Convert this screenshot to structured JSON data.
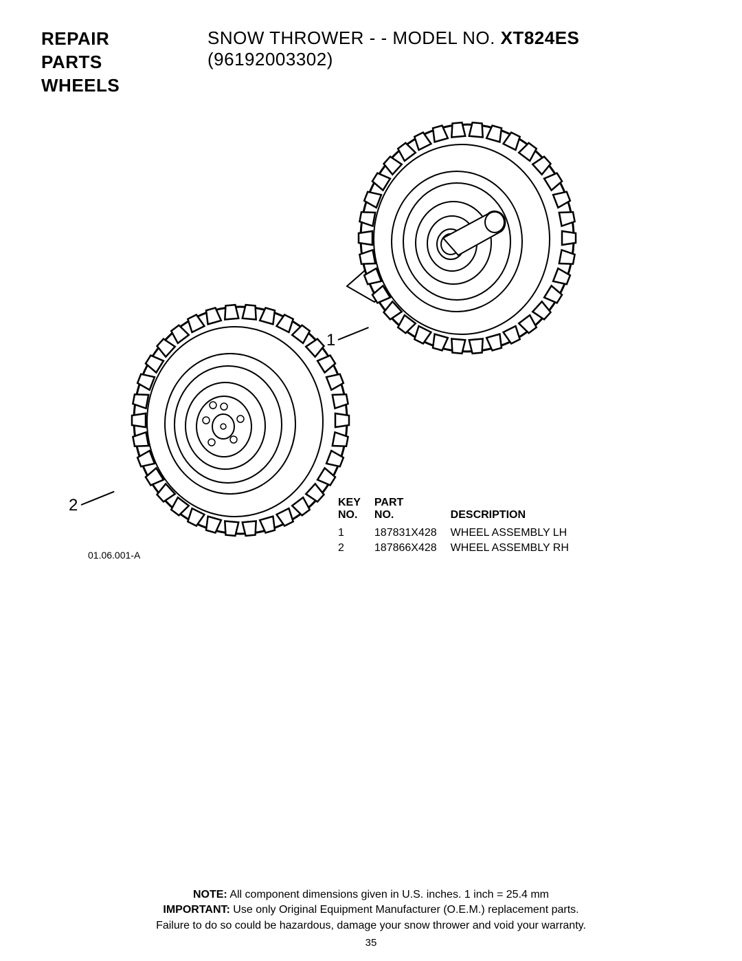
{
  "header": {
    "left_line1": "REPAIR PARTS",
    "left_line2": "WHEELS",
    "right_prefix": "SNOW THROWER - - MODEL NO. ",
    "right_model": "XT824ES",
    "right_suffix": " (96192003302)"
  },
  "callouts": {
    "one": "1",
    "two": "2"
  },
  "drawing_id": "01.06.001-A",
  "table": {
    "head_key_line1": "KEY",
    "head_key_line2": "NO.",
    "head_part_line1": "PART",
    "head_part_line2": "NO.",
    "head_desc": "DESCRIPTION",
    "rows": [
      {
        "key": "1",
        "part": "187831X428",
        "desc": "WHEEL ASSEMBLY LH"
      },
      {
        "key": "2",
        "part": "187866X428",
        "desc": "WHEEL ASSEMBLY RH"
      }
    ]
  },
  "footer": {
    "note_label": "NOTE:",
    "note_text": "  All component dimensions given in U.S. inches.    1 inch = 25.4 mm",
    "important_label": "IMPORTANT:",
    "important_text": " Use only Original Equipment Manufacturer (O.E.M.) replacement parts.",
    "line3": "Failure to do so could be hazardous, damage your snow thrower and void your warranty."
  },
  "page_number": "35",
  "wheel_svg": {
    "stroke": "#000000",
    "fill": "#ffffff",
    "stroke_width": 2
  }
}
